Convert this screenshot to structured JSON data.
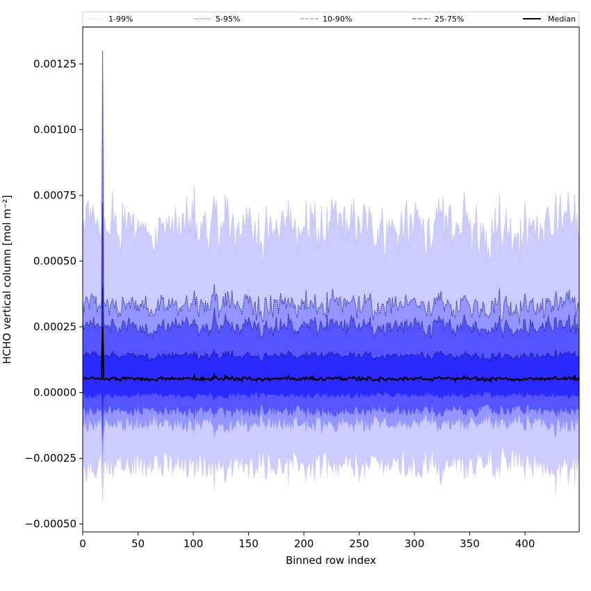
{
  "chart_data": {
    "type": "area",
    "xlabel": "Binned row index",
    "ylabel": "HCHO vertical column [mol m⁻²]",
    "xlim": [
      0,
      449
    ],
    "ylim": [
      -0.00053,
      0.00139
    ],
    "xticks": [
      0,
      50,
      100,
      150,
      200,
      250,
      300,
      350,
      400
    ],
    "xtick_labels": [
      "0",
      "50",
      "100",
      "150",
      "200",
      "250",
      "300",
      "350",
      "400"
    ],
    "yticks": [
      -0.0005,
      -0.00025,
      0.0,
      0.00025,
      0.0005,
      0.00075,
      0.001,
      0.00125
    ],
    "ytick_labels": [
      "−0.00050",
      "−0.00025",
      "0.00000",
      "0.00025",
      "0.00050",
      "0.00075",
      "0.00100",
      "0.00125"
    ],
    "grid": false,
    "legend_position": "top",
    "n_points": 450,
    "spike_x": 18,
    "bands": [
      {
        "name": "1-99%",
        "color": "#ccccff",
        "line_color": "#b8b8ee",
        "upper_mean": 0.00063,
        "lower_mean": -0.00028,
        "spike_upper": 0.0013,
        "spike_lower": -0.00043
      },
      {
        "name": "5-95%",
        "color": "#9595ff",
        "line_color": "#1a1aa0",
        "upper_mean": 0.00033,
        "lower_mean": -0.00012,
        "spike_upper": 0.0013,
        "spike_lower": -0.0003
      },
      {
        "name": "10-90%",
        "color": "#5555ff",
        "line_color": "#14148a",
        "upper_mean": 0.00025,
        "lower_mean": -7e-05,
        "spike_upper": 0.00072,
        "spike_lower": -0.0002
      },
      {
        "name": "25-75%",
        "color": "#2a2aff",
        "line_color": "#0a0a66",
        "upper_mean": 0.00014,
        "lower_mean": -1e-05,
        "spike_upper": 0.0004,
        "spike_lower": -0.0001
      }
    ],
    "median": {
      "name": "Median",
      "color": "#000000",
      "mean": 5.2e-05,
      "spike": 0.00025
    },
    "legend": [
      {
        "label": "1-99%",
        "color": "#c8c8f0",
        "dash": "1,1"
      },
      {
        "label": "5-95%",
        "color": "#5050c0",
        "dash": "1,1"
      },
      {
        "label": "10-90%",
        "color": "#6a6aff",
        "dash": "5,2"
      },
      {
        "label": "25-75%",
        "color": "#3030d8",
        "dash": "6,2"
      },
      {
        "label": "Median",
        "color": "#000000",
        "dash": ""
      }
    ]
  }
}
